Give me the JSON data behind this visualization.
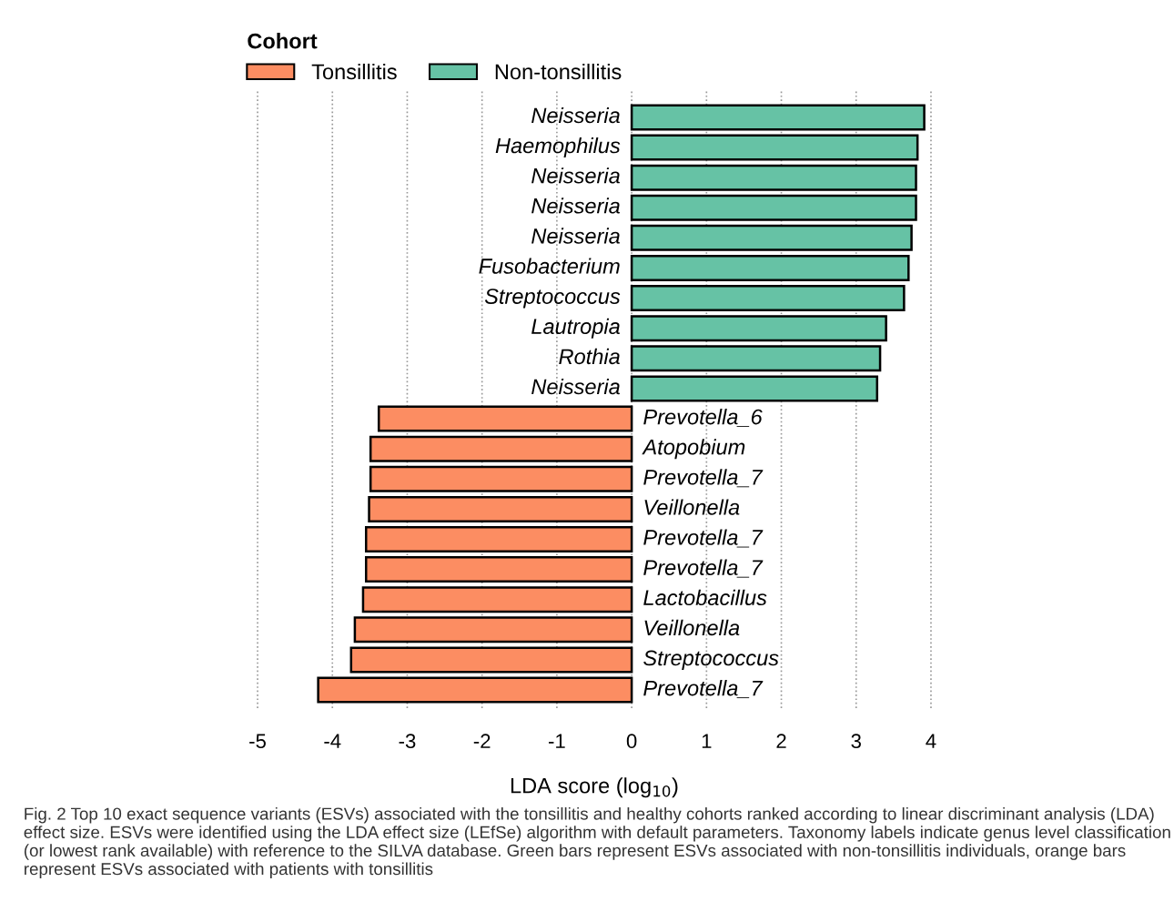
{
  "chart_data": {
    "type": "bar",
    "orientation": "horizontal",
    "categories": [
      "Neisseria",
      "Haemophilus",
      "Neisseria",
      "Neisseria",
      "Neisseria",
      "Fusobacterium",
      "Streptococcus",
      "Lautropia",
      "Rothia",
      "Neisseria",
      "Prevotella_6",
      "Atopobium",
      "Prevotella_7",
      "Veillonella",
      "Prevotella_7",
      "Prevotella_7",
      "Lactobacillus",
      "Veillonella",
      "Streptococcus",
      "Prevotella_7"
    ],
    "series": [
      {
        "name": "Tonsillitis",
        "color": "#fc8d62",
        "values": [
          null,
          null,
          null,
          null,
          null,
          null,
          null,
          null,
          null,
          null,
          -3.38,
          -3.49,
          -3.49,
          -3.51,
          -3.55,
          -3.55,
          -3.59,
          -3.7,
          -3.75,
          -4.19
        ]
      },
      {
        "name": "Non-tonsillitis",
        "color": "#66c2a5",
        "values": [
          3.91,
          3.82,
          3.8,
          3.8,
          3.74,
          3.7,
          3.64,
          3.4,
          3.32,
          3.28,
          null,
          null,
          null,
          null,
          null,
          null,
          null,
          null,
          null,
          null
        ]
      }
    ],
    "legend_title": "Cohort",
    "legend": "top",
    "xlabel": "LDA score (log$_{10}$)",
    "xlim": [
      -5,
      4
    ],
    "xticks": [
      -5,
      -4,
      -3,
      -2,
      -1,
      0,
      1,
      2,
      3,
      4
    ],
    "grid": "x",
    "annotations": [
      "Fig. 2 Top 10 exact sequence variants (ESVs) associated with the tonsillitis and healthy cohorts ranked according to linear discriminant analysis (LDA) effect size. ESVs were identified using the LDA effect size (LEfSe) algorithm with default parameters. Taxonomy labels indicate genus level classification (or lowest rank available) with reference to the SILVA database. Green bars represent ESVs associated with non-tonsillitis individuals, orange bars represent ESVs associated with patients with tonsillitis"
    ]
  }
}
